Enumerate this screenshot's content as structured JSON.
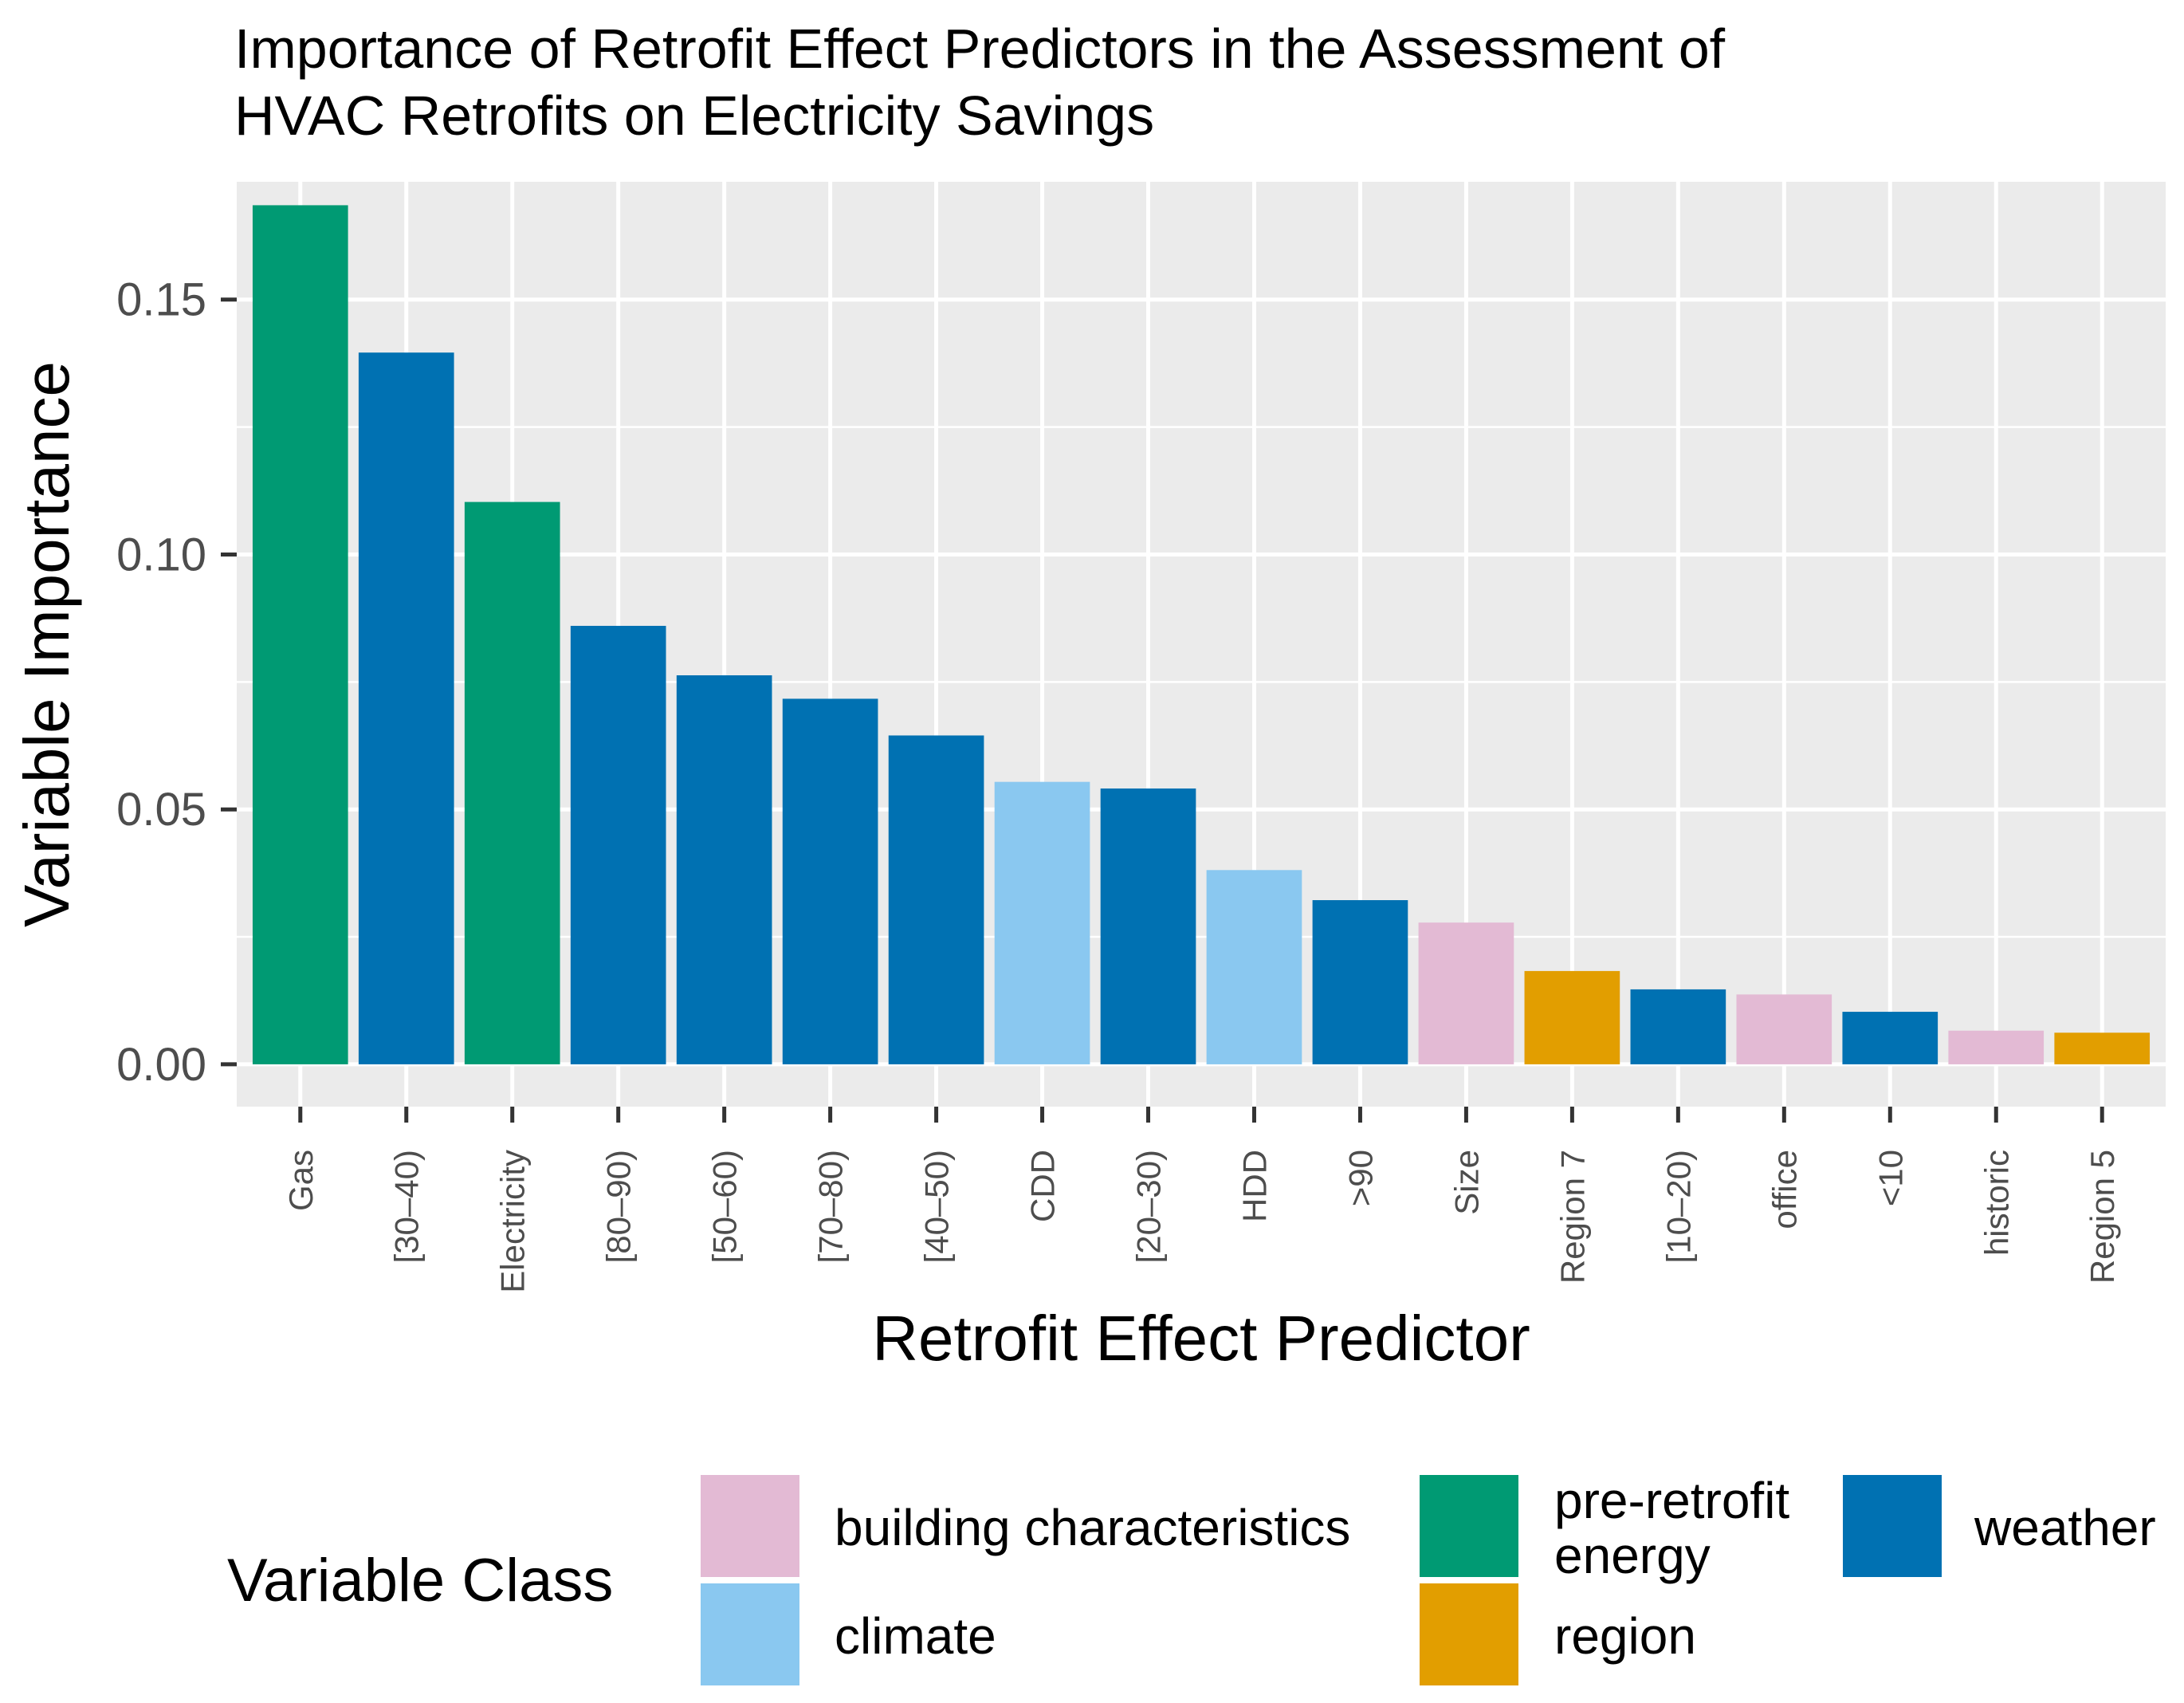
{
  "chart_data": {
    "type": "bar",
    "title": "Importance of Retrofit Effect Predictors in the Assessment of HVAC Retrofits on Electricity Savings",
    "title_lines": [
      "Importance of Retrofit Effect Predictors in the Assessment of",
      "HVAC Retrofits on Electricity Savings"
    ],
    "xlabel": "Retrofit Effect Predictor",
    "ylabel": "Variable Importance",
    "ylim": [
      -0.0083,
      0.1731
    ],
    "yticks": [
      0.0,
      0.05,
      0.1,
      0.15
    ],
    "ytick_labels": [
      "0.00",
      "0.05",
      "0.10",
      "0.15"
    ],
    "grid": true,
    "legend": {
      "title": "Variable Class",
      "position": "bottom",
      "entries": [
        {
          "label": "building characteristics",
          "color": "#E3BAD4"
        },
        {
          "label": "climate",
          "color": "#8AC8F0"
        },
        {
          "label": "pre-retrofit energy",
          "label_lines": [
            "pre-retrofit",
            "energy"
          ],
          "color": "#009A73"
        },
        {
          "label": "region",
          "color": "#E29E00"
        },
        {
          "label": "weather",
          "color": "#0071B2"
        }
      ]
    },
    "categories": [
      "Gas",
      "[30–40)",
      "Electricity",
      "[80–90)",
      "[50–60)",
      "[70–80)",
      "[40–50)",
      "CDD",
      "[20–30)",
      "HDD",
      ">90",
      "Size",
      "Region 7",
      "[10–20)",
      "office",
      "<10",
      "historic",
      "Region 5"
    ],
    "values": [
      0.1685,
      0.1396,
      0.1103,
      0.086,
      0.0763,
      0.0717,
      0.0645,
      0.0554,
      0.0541,
      0.0381,
      0.0322,
      0.0278,
      0.0183,
      0.0147,
      0.0137,
      0.0103,
      0.0066,
      0.0062
    ],
    "classes": [
      "pre-retrofit energy",
      "weather",
      "pre-retrofit energy",
      "weather",
      "weather",
      "weather",
      "weather",
      "climate",
      "weather",
      "climate",
      "weather",
      "building characteristics",
      "region",
      "weather",
      "building characteristics",
      "weather",
      "building characteristics",
      "region"
    ]
  }
}
